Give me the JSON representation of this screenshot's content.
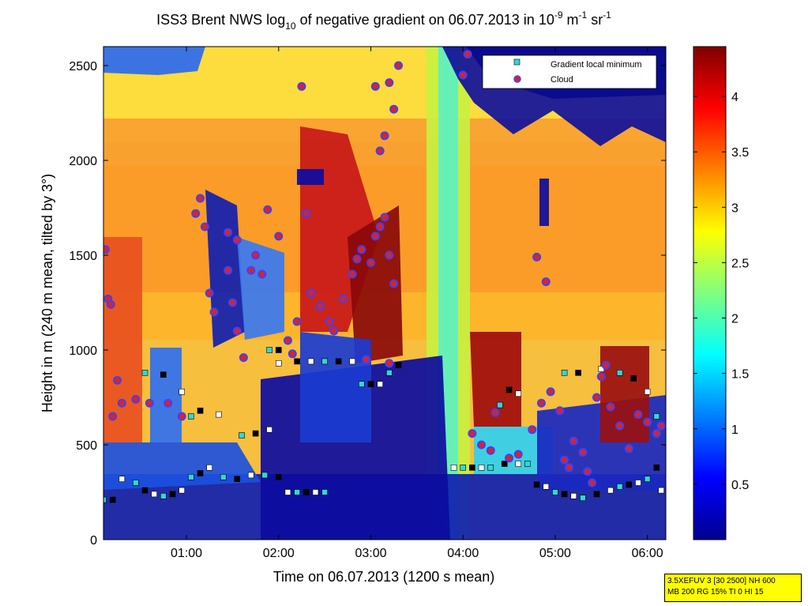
{
  "chart_data": {
    "type": "heatmap",
    "title": "ISS3 Brent NWS log10 of negative gradient on 06.07.2013 in 10-9 m-1 sr-1",
    "title_parts": {
      "a": "ISS3 Brent NWS log",
      "sub1": "10",
      "b": " of negative gradient on 06.07.2013 in 10",
      "sup1": "-9",
      "c": " m",
      "sup2": "-1",
      "d": " sr",
      "sup3": "-1"
    },
    "xlabel": "Time on 06.07.2013 (1200 s mean)",
    "ylabel": "Height in m (240 m mean, tilted by 3°)",
    "x_unit": "hours",
    "xlim": [
      0.1,
      6.2
    ],
    "ylim": [
      0,
      2600
    ],
    "x_ticks": [
      {
        "value": 1,
        "label": "01:00"
      },
      {
        "value": 2,
        "label": "02:00"
      },
      {
        "value": 3,
        "label": "03:00"
      },
      {
        "value": 4,
        "label": "04:00"
      },
      {
        "value": 5,
        "label": "05:00"
      },
      {
        "value": 6,
        "label": "06:00"
      }
    ],
    "y_ticks": [
      {
        "value": 0,
        "label": "0"
      },
      {
        "value": 500,
        "label": "500"
      },
      {
        "value": 1000,
        "label": "1000"
      },
      {
        "value": 1500,
        "label": "1500"
      },
      {
        "value": 2000,
        "label": "2000"
      },
      {
        "value": 2500,
        "label": "2500"
      }
    ],
    "colorbar": {
      "range": [
        0,
        4.45
      ],
      "ticks": [
        {
          "value": 0.5,
          "label": "0.5"
        },
        {
          "value": 1,
          "label": "1"
        },
        {
          "value": 1.5,
          "label": "1.5"
        },
        {
          "value": 2,
          "label": "2"
        },
        {
          "value": 2.5,
          "label": "2.5"
        },
        {
          "value": 3,
          "label": "3"
        },
        {
          "value": 3.5,
          "label": "3.5"
        },
        {
          "value": 4,
          "label": "4"
        }
      ],
      "colormap": "jet"
    },
    "legend": {
      "placement": "top-right",
      "entries": [
        {
          "label": "Gradient local minimum",
          "marker": "square",
          "color": "#33d6d6"
        },
        {
          "label": "Cloud",
          "marker": "circle",
          "color": "#dd2222",
          "edge": "#4040ff"
        }
      ]
    },
    "series": [
      {
        "name": "Gradient local minimum",
        "points": [
          [
            0.1,
            210
          ],
          [
            0.2,
            210
          ],
          [
            0.3,
            320
          ],
          [
            0.45,
            300
          ],
          [
            0.55,
            260
          ],
          [
            0.65,
            240
          ],
          [
            0.75,
            230
          ],
          [
            0.85,
            240
          ],
          [
            0.95,
            260
          ],
          [
            1.05,
            330
          ],
          [
            1.15,
            350
          ],
          [
            1.25,
            380
          ],
          [
            1.4,
            330
          ],
          [
            1.55,
            320
          ],
          [
            1.7,
            340
          ],
          [
            1.85,
            340
          ],
          [
            2.0,
            330
          ],
          [
            2.1,
            250
          ],
          [
            2.2,
            250
          ],
          [
            2.3,
            250
          ],
          [
            2.4,
            250
          ],
          [
            2.5,
            250
          ],
          [
            2.2,
            940
          ],
          [
            2.35,
            940
          ],
          [
            2.5,
            940
          ],
          [
            2.65,
            940
          ],
          [
            2.8,
            940
          ],
          [
            2.9,
            820
          ],
          [
            3.0,
            820
          ],
          [
            3.1,
            820
          ],
          [
            3.2,
            880
          ],
          [
            3.3,
            920
          ],
          [
            3.9,
            380
          ],
          [
            4.0,
            380
          ],
          [
            4.1,
            380
          ],
          [
            4.2,
            380
          ],
          [
            4.3,
            380
          ],
          [
            4.45,
            400
          ],
          [
            4.6,
            400
          ],
          [
            4.7,
            400
          ],
          [
            4.8,
            290
          ],
          [
            4.9,
            280
          ],
          [
            5.0,
            250
          ],
          [
            5.1,
            240
          ],
          [
            5.2,
            230
          ],
          [
            5.3,
            220
          ],
          [
            5.45,
            240
          ],
          [
            5.6,
            260
          ],
          [
            5.7,
            280
          ],
          [
            5.8,
            290
          ],
          [
            5.9,
            300
          ],
          [
            6.0,
            320
          ],
          [
            6.1,
            380
          ],
          [
            6.15,
            260
          ],
          [
            0.55,
            880
          ],
          [
            0.75,
            870
          ],
          [
            0.95,
            780
          ],
          [
            1.05,
            650
          ],
          [
            1.15,
            680
          ],
          [
            1.35,
            660
          ],
          [
            1.6,
            550
          ],
          [
            1.75,
            560
          ],
          [
            1.9,
            580
          ],
          [
            1.9,
            1000
          ],
          [
            2.0,
            1000
          ],
          [
            2.0,
            930
          ],
          [
            4.4,
            710
          ],
          [
            4.5,
            790
          ],
          [
            4.6,
            770
          ],
          [
            5.1,
            880
          ],
          [
            5.25,
            880
          ],
          [
            5.5,
            900
          ],
          [
            5.7,
            880
          ],
          [
            5.85,
            850
          ],
          [
            6.0,
            780
          ],
          [
            6.1,
            650
          ]
        ]
      },
      {
        "name": "Cloud",
        "points": [
          [
            0.12,
            1530
          ],
          [
            0.15,
            1270
          ],
          [
            0.18,
            1240
          ],
          [
            0.25,
            840
          ],
          [
            0.2,
            650
          ],
          [
            0.3,
            720
          ],
          [
            0.45,
            740
          ],
          [
            0.6,
            720
          ],
          [
            0.8,
            720
          ],
          [
            0.95,
            650
          ],
          [
            1.1,
            1720
          ],
          [
            1.15,
            1800
          ],
          [
            1.2,
            1650
          ],
          [
            1.25,
            1300
          ],
          [
            1.3,
            1200
          ],
          [
            1.45,
            1620
          ],
          [
            1.55,
            1580
          ],
          [
            1.62,
            960
          ],
          [
            1.45,
            1420
          ],
          [
            1.5,
            1250
          ],
          [
            1.55,
            1100
          ],
          [
            1.7,
            1420
          ],
          [
            1.75,
            1500
          ],
          [
            1.88,
            1740
          ],
          [
            1.82,
            1400
          ],
          [
            2.0,
            1600
          ],
          [
            2.1,
            1050
          ],
          [
            2.15,
            980
          ],
          [
            2.2,
            1150
          ],
          [
            2.25,
            2390
          ],
          [
            2.3,
            1720
          ],
          [
            2.35,
            1300
          ],
          [
            2.45,
            1230
          ],
          [
            2.55,
            1150
          ],
          [
            2.6,
            1100
          ],
          [
            2.7,
            1270
          ],
          [
            2.8,
            1400
          ],
          [
            2.85,
            1480
          ],
          [
            2.9,
            1530
          ],
          [
            3.0,
            1460
          ],
          [
            3.05,
            1600
          ],
          [
            3.1,
            1650
          ],
          [
            3.15,
            1700
          ],
          [
            3.2,
            1500
          ],
          [
            3.25,
            1350
          ],
          [
            3.05,
            2390
          ],
          [
            3.1,
            2050
          ],
          [
            3.15,
            2130
          ],
          [
            3.2,
            2410
          ],
          [
            3.25,
            2270
          ],
          [
            3.3,
            2500
          ],
          [
            2.95,
            950
          ],
          [
            3.2,
            930
          ],
          [
            4.0,
            2450
          ],
          [
            4.05,
            2560
          ],
          [
            4.1,
            560
          ],
          [
            4.2,
            500
          ],
          [
            4.3,
            470
          ],
          [
            4.35,
            670
          ],
          [
            4.5,
            430
          ],
          [
            4.6,
            450
          ],
          [
            4.75,
            580
          ],
          [
            4.8,
            1490
          ],
          [
            4.9,
            1360
          ],
          [
            4.85,
            720
          ],
          [
            4.95,
            780
          ],
          [
            5.05,
            680
          ],
          [
            5.1,
            420
          ],
          [
            5.15,
            380
          ],
          [
            5.2,
            520
          ],
          [
            5.3,
            460
          ],
          [
            5.35,
            360
          ],
          [
            5.4,
            300
          ],
          [
            5.45,
            750
          ],
          [
            5.5,
            860
          ],
          [
            5.55,
            920
          ],
          [
            5.6,
            700
          ],
          [
            5.7,
            600
          ],
          [
            5.8,
            480
          ],
          [
            5.9,
            660
          ],
          [
            6.0,
            620
          ],
          [
            6.1,
            560
          ],
          [
            6.15,
            600
          ]
        ]
      }
    ],
    "annotation_lines": [
      "3.5XEFUV 3 [30 2500] NH 600",
      "MB 200 RG 15% TI 0 HI 15"
    ]
  }
}
